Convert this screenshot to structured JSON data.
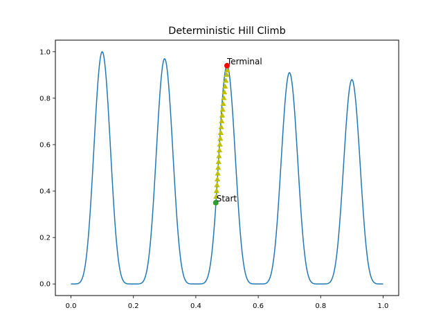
{
  "chart_data": {
    "type": "line",
    "title": "Deterministic Hill Climb",
    "xlabel": "",
    "ylabel": "",
    "xlim": [
      -0.05,
      1.05
    ],
    "ylim": [
      -0.05,
      1.05
    ],
    "xticks": [
      0.0,
      0.2,
      0.4,
      0.6,
      0.8,
      1.0
    ],
    "xtick_labels": [
      "0.0",
      "0.2",
      "0.4",
      "0.6",
      "0.8",
      "1.0"
    ],
    "yticks": [
      0.0,
      0.2,
      0.4,
      0.6,
      0.8,
      1.0
    ],
    "ytick_labels": [
      "0.0",
      "0.2",
      "0.4",
      "0.6",
      "0.8",
      "1.0"
    ],
    "grid": false,
    "curve": {
      "color": "#1f77b4",
      "peaks": [
        {
          "x": 0.1,
          "height": 1.0
        },
        {
          "x": 0.3,
          "height": 0.97
        },
        {
          "x": 0.5,
          "height": 0.94
        },
        {
          "x": 0.7,
          "height": 0.91
        },
        {
          "x": 0.9,
          "height": 0.88
        }
      ]
    },
    "path": {
      "color": "#bfbf00",
      "marker": "triangle",
      "points": [
        [
          0.4638,
          0.35
        ],
        [
          0.4652,
          0.375
        ],
        [
          0.4665,
          0.4
        ],
        [
          0.4678,
          0.425
        ],
        [
          0.4691,
          0.45
        ],
        [
          0.4704,
          0.475
        ],
        [
          0.4717,
          0.5
        ],
        [
          0.473,
          0.525
        ],
        [
          0.4743,
          0.55
        ],
        [
          0.4757,
          0.575
        ],
        [
          0.4771,
          0.6
        ],
        [
          0.4785,
          0.625
        ],
        [
          0.4799,
          0.65
        ],
        [
          0.4814,
          0.675
        ],
        [
          0.4829,
          0.7
        ],
        [
          0.4845,
          0.725
        ],
        [
          0.4861,
          0.75
        ],
        [
          0.4878,
          0.775
        ],
        [
          0.4896,
          0.8
        ],
        [
          0.4915,
          0.825
        ],
        [
          0.4936,
          0.85
        ],
        [
          0.496,
          0.875
        ],
        [
          0.4988,
          0.9
        ],
        [
          0.501,
          0.92
        ]
      ]
    },
    "start": {
      "x": 0.464,
      "y": 0.35,
      "label": "Start",
      "color": "#2ca02c"
    },
    "terminal": {
      "x": 0.5,
      "y": 0.94,
      "label": "Terminal",
      "color": "#ff0000"
    }
  }
}
